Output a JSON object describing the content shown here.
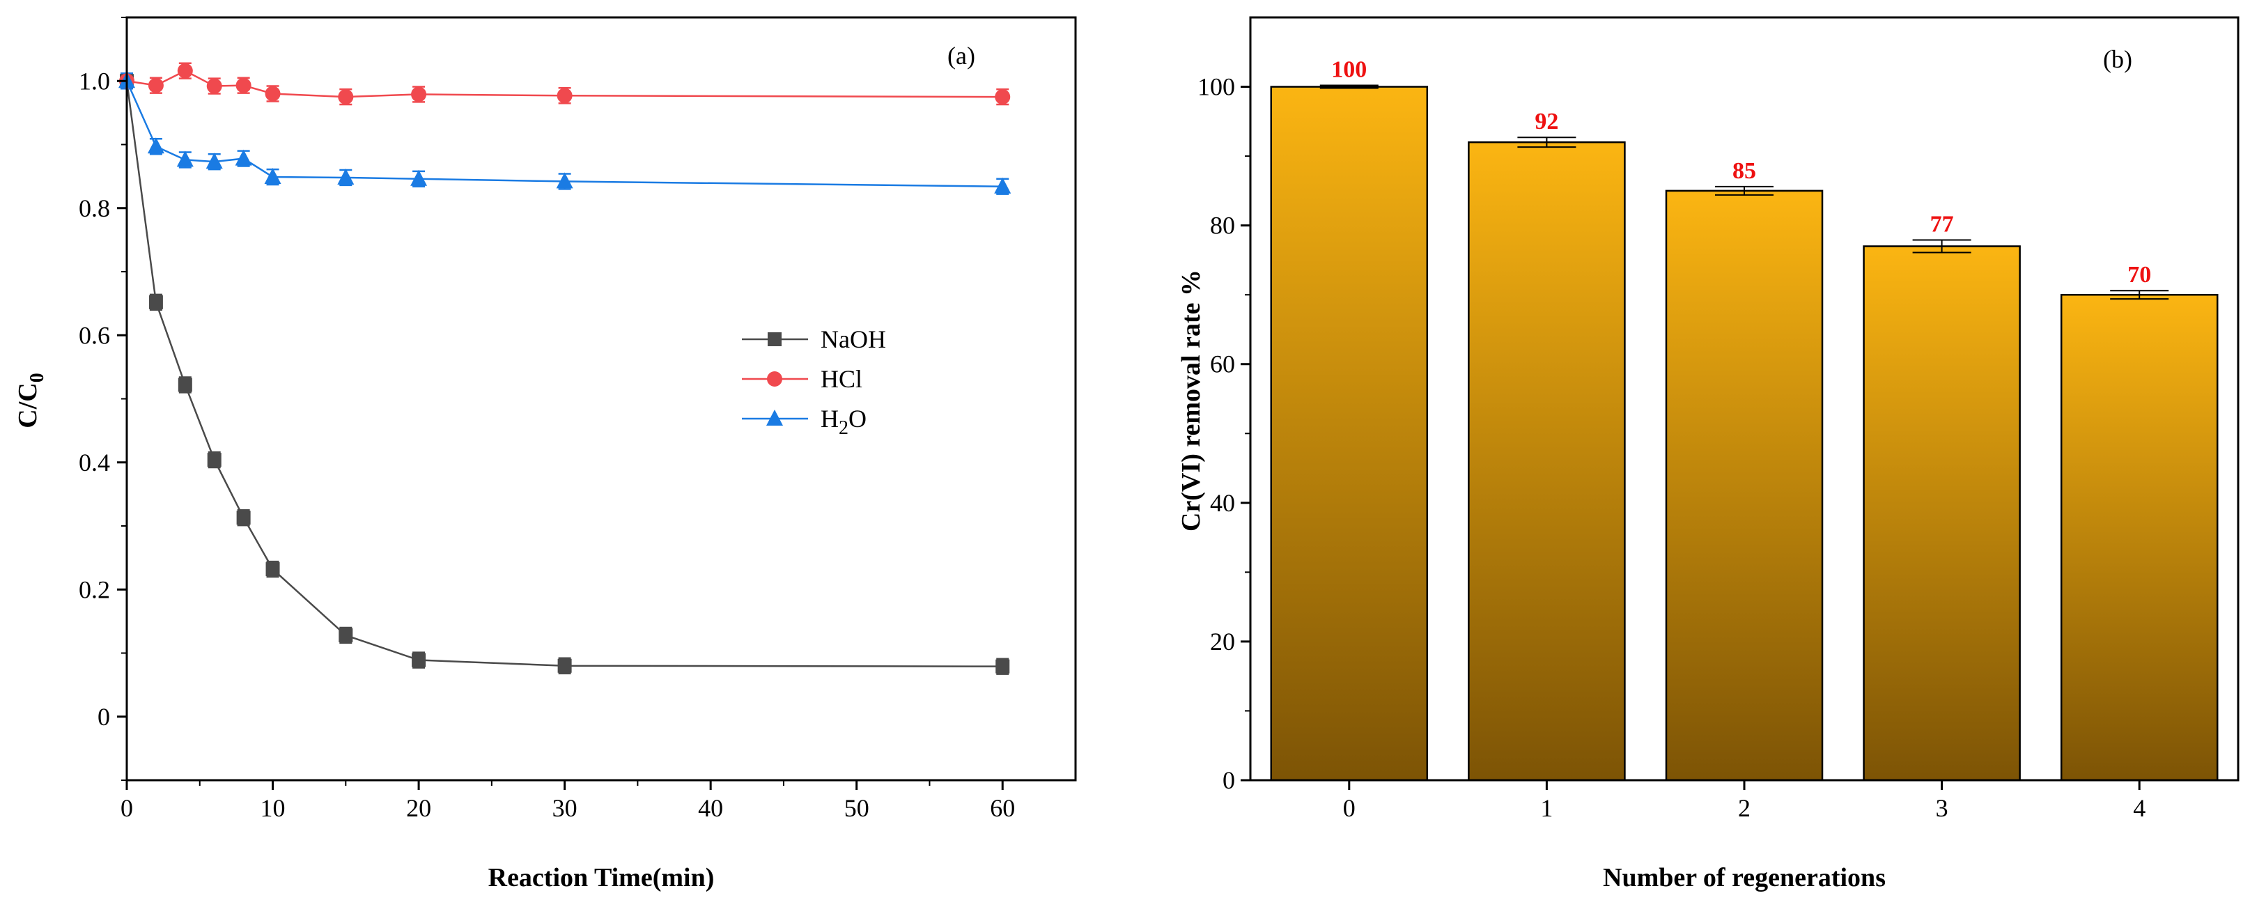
{
  "chart_data": [
    {
      "type": "line",
      "panel_label": "(a)",
      "xlabel": "Reaction Time(min)",
      "ylabel_main": "C/C",
      "ylabel_sub": "0",
      "xlim": [
        0,
        65
      ],
      "ylim": [
        -0.1,
        1.1
      ],
      "xticks": [
        0,
        10,
        20,
        30,
        40,
        50,
        60
      ],
      "yticks": [
        0,
        0.2,
        0.4,
        0.6,
        0.8,
        1.0
      ],
      "ytick_labels": [
        "0",
        "0.2",
        "0.4",
        "0.6",
        "0.8",
        "1.0"
      ],
      "x": [
        0,
        2,
        4,
        6,
        8,
        10,
        15,
        20,
        30,
        60
      ],
      "series": [
        {
          "name": "NaOH",
          "name_sub": "",
          "marker": "square",
          "color": "#4a4a4a",
          "values": [
            1.0,
            0.652,
            0.522,
            0.404,
            0.313,
            0.232,
            0.128,
            0.089,
            0.08,
            0.079
          ]
        },
        {
          "name": "HCl",
          "name_sub": "",
          "marker": "circle",
          "color": "#f0494e",
          "values": [
            1.0,
            0.993,
            1.016,
            0.992,
            0.993,
            0.98,
            0.975,
            0.979,
            0.977,
            0.975
          ]
        },
        {
          "name": "H",
          "name_sub": "2",
          "name_tail": "O",
          "marker": "triangle",
          "color": "#1a7be3",
          "values": [
            1.0,
            0.897,
            0.876,
            0.873,
            0.878,
            0.849,
            0.848,
            0.846,
            0.842,
            0.834
          ]
        }
      ],
      "legend_position": "center-right"
    },
    {
      "type": "bar",
      "panel_label": "(b)",
      "xlabel": "Number of regenerations",
      "ylabel": "Cr(VI) removal rate %",
      "ylim": [
        0,
        110
      ],
      "yticks": [
        0,
        20,
        40,
        60,
        80,
        100
      ],
      "categories": [
        "0",
        "1",
        "2",
        "3",
        "4"
      ],
      "values": [
        100,
        92,
        85,
        77,
        70
      ],
      "errors": [
        0.2,
        0.7,
        0.6,
        0.9,
        0.6
      ],
      "data_labels": [
        "100",
        "92",
        "85",
        "77",
        "70"
      ],
      "bar_color_top": "#fbb512",
      "bar_color_bottom": "#7d5405",
      "label_color": "#ee1111"
    }
  ]
}
